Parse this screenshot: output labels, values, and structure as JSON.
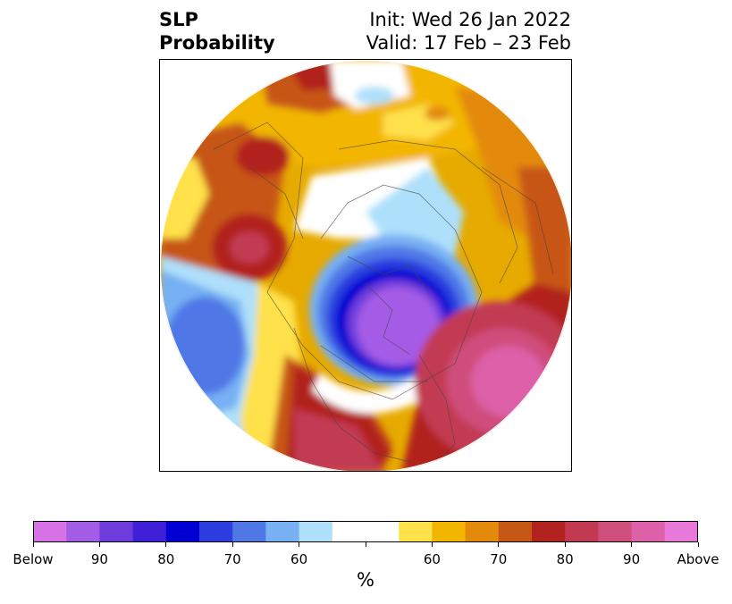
{
  "header": {
    "title_line1": "SLP",
    "title_line2": "Probability",
    "init": "Init: Wed 26 Jan 2022",
    "valid": "Valid: 17 Feb – 23 Feb"
  },
  "colorbar": {
    "colors": [
      "#d671e6",
      "#a45ce6",
      "#6e3cdc",
      "#3f1fd8",
      "#0000d2",
      "#2c3ee0",
      "#4f78e6",
      "#77b0f3",
      "#aee0fb",
      "#ffffff",
      "#ffffff",
      "#ffe14c",
      "#f3b600",
      "#e38a0c",
      "#c75717",
      "#b2221e",
      "#c23a52",
      "#cf4e7c",
      "#dd61a8",
      "#e878da"
    ],
    "tick_labels": [
      "Below",
      "90",
      "80",
      "70",
      "60",
      "60",
      "70",
      "80",
      "90",
      "Above"
    ],
    "unit": "%"
  },
  "map": {
    "projection": "north-polar-stereographic"
  }
}
